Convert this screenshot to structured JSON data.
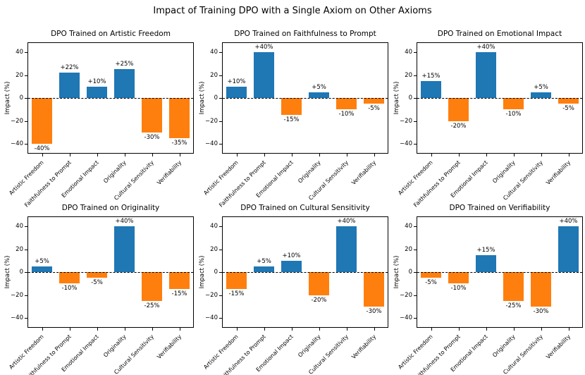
{
  "figure_title": "Impact of Training DPO with a Single Axiom on Other Axioms",
  "colors": {
    "positive_bar": "#1f77b4",
    "negative_bar": "#ff7f0e",
    "axis": "#000000",
    "background": "#ffffff"
  },
  "chart_data": [
    {
      "type": "bar",
      "title": "DPO Trained on Artistic Freedom",
      "categories": [
        "Artistic Freedom",
        "Faithfulness to Prompt",
        "Emotional Impact",
        "Originality",
        "Cultural Sensitivity",
        "Verifiability"
      ],
      "values": [
        -40,
        22,
        10,
        25,
        -30,
        -35
      ],
      "bar_labels": [
        "-40%",
        "+22%",
        "+10%",
        "+25%",
        "-30%",
        "-35%"
      ],
      "ylabel": "Impact (%)",
      "ylim": [
        -48,
        48
      ],
      "yticks": [
        -40,
        -20,
        0,
        20,
        40
      ],
      "ytick_labels": [
        "−40",
        "−20",
        "0",
        "20",
        "40"
      ],
      "zero_line": "dashed",
      "grid": false
    },
    {
      "type": "bar",
      "title": "DPO Trained on Faithfulness to Prompt",
      "categories": [
        "Artistic Freedom",
        "Faithfulness to Prompt",
        "Emotional Impact",
        "Originality",
        "Cultural Sensitivity",
        "Verifiability"
      ],
      "values": [
        10,
        40,
        -15,
        5,
        -10,
        -5
      ],
      "bar_labels": [
        "+10%",
        "+40%",
        "-15%",
        "+5%",
        "-10%",
        "-5%"
      ],
      "ylabel": "Impact (%)",
      "ylim": [
        -48,
        48
      ],
      "yticks": [
        -40,
        -20,
        0,
        20,
        40
      ],
      "ytick_labels": [
        "−40",
        "−20",
        "0",
        "20",
        "40"
      ],
      "zero_line": "dashed",
      "grid": false
    },
    {
      "type": "bar",
      "title": "DPO Trained on Emotional Impact",
      "categories": [
        "Artistic Freedom",
        "Faithfulness to Prompt",
        "Emotional Impact",
        "Originality",
        "Cultural Sensitivity",
        "Verifiability"
      ],
      "values": [
        15,
        -20,
        40,
        -10,
        5,
        -5
      ],
      "bar_labels": [
        "+15%",
        "-20%",
        "+40%",
        "-10%",
        "+5%",
        "-5%"
      ],
      "ylabel": "Impact (%)",
      "ylim": [
        -48,
        48
      ],
      "yticks": [
        -40,
        -20,
        0,
        20,
        40
      ],
      "ytick_labels": [
        "−40",
        "−20",
        "0",
        "20",
        "40"
      ],
      "zero_line": "dashed",
      "grid": false
    },
    {
      "type": "bar",
      "title": "DPO Trained on Originality",
      "categories": [
        "Artistic Freedom",
        "Faithfulness to Prompt",
        "Emotional Impact",
        "Originality",
        "Cultural Sensitivity",
        "Verifiability"
      ],
      "values": [
        5,
        -10,
        -5,
        40,
        -25,
        -15
      ],
      "bar_labels": [
        "+5%",
        "-10%",
        "-5%",
        "+40%",
        "-25%",
        "-15%"
      ],
      "ylabel": "Impact (%)",
      "ylim": [
        -48,
        48
      ],
      "yticks": [
        -40,
        -20,
        0,
        20,
        40
      ],
      "ytick_labels": [
        "−40",
        "−20",
        "0",
        "20",
        "40"
      ],
      "zero_line": "dashed",
      "grid": false
    },
    {
      "type": "bar",
      "title": "DPO Trained on Cultural Sensitivity",
      "categories": [
        "Artistic Freedom",
        "Faithfulness to Prompt",
        "Emotional Impact",
        "Originality",
        "Cultural Sensitivity",
        "Verifiability"
      ],
      "values": [
        -15,
        5,
        10,
        -20,
        40,
        -30
      ],
      "bar_labels": [
        "-15%",
        "+5%",
        "+10%",
        "-20%",
        "+40%",
        "-30%"
      ],
      "ylabel": "Impact (%)",
      "ylim": [
        -48,
        48
      ],
      "yticks": [
        -40,
        -20,
        0,
        20,
        40
      ],
      "ytick_labels": [
        "−40",
        "−20",
        "0",
        "20",
        "40"
      ],
      "zero_line": "dashed",
      "grid": false
    },
    {
      "type": "bar",
      "title": "DPO Trained on Verifiability",
      "categories": [
        "Artistic Freedom",
        "Faithfulness to Prompt",
        "Emotional Impact",
        "Originality",
        "Cultural Sensitivity",
        "Verifiability"
      ],
      "values": [
        -5,
        -10,
        15,
        -25,
        -30,
        40
      ],
      "bar_labels": [
        "-5%",
        "-10%",
        "+15%",
        "-25%",
        "-30%",
        "+40%"
      ],
      "ylabel": "Impact (%)",
      "ylim": [
        -48,
        48
      ],
      "yticks": [
        -40,
        -20,
        0,
        20,
        40
      ],
      "ytick_labels": [
        "−40",
        "−20",
        "0",
        "20",
        "40"
      ],
      "zero_line": "dashed",
      "grid": false
    }
  ]
}
